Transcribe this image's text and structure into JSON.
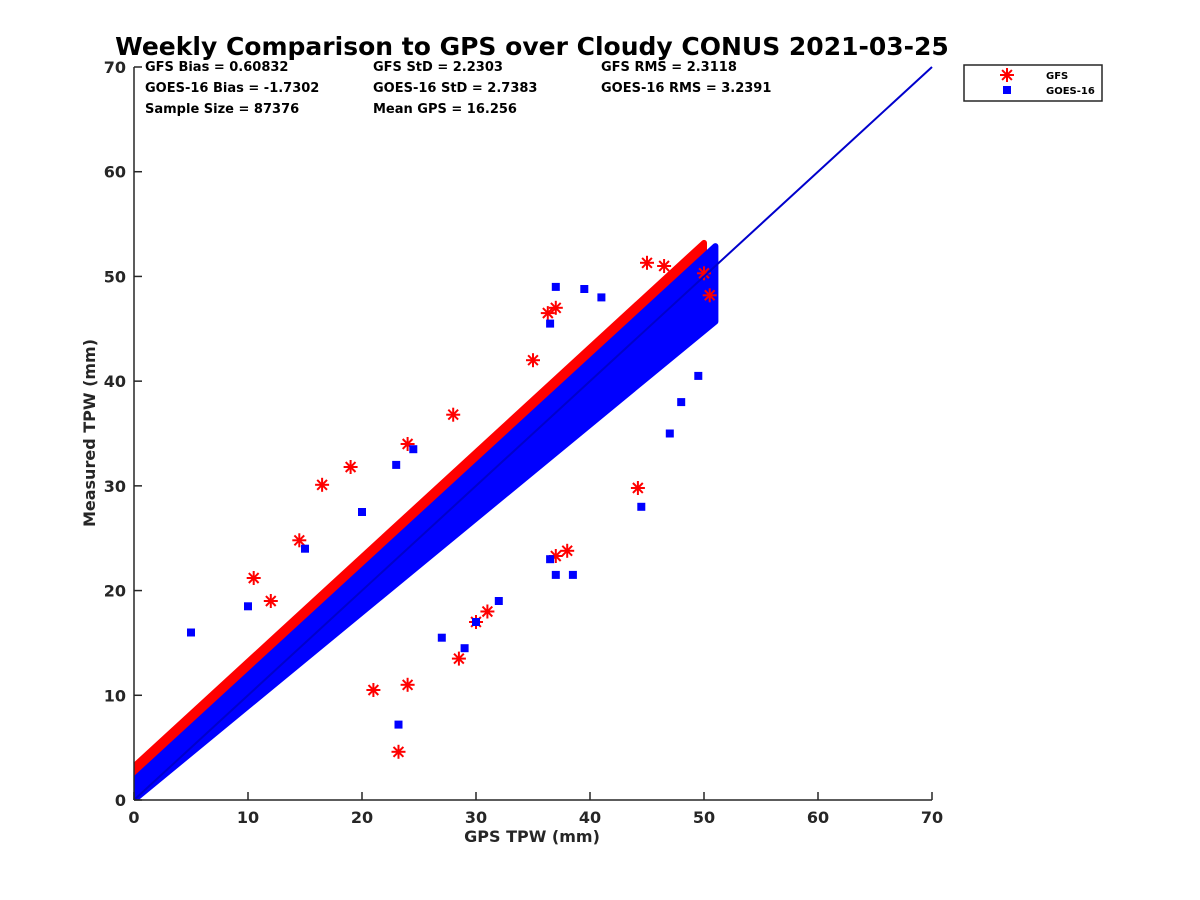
{
  "chart_data": {
    "type": "scatter",
    "title": "Weekly Comparison to GPS over Cloudy CONUS 2021-03-25",
    "xlabel": "GPS TPW (mm)",
    "ylabel": "Measured TPW (mm)",
    "xlim": [
      0,
      70
    ],
    "ylim": [
      0,
      70
    ],
    "xticks": [
      "0",
      "10",
      "20",
      "30",
      "40",
      "50",
      "60",
      "70"
    ],
    "yticks": [
      "0",
      "10",
      "20",
      "30",
      "40",
      "50",
      "60",
      "70"
    ],
    "grid": false,
    "legend_position": "top-right, outside plot",
    "stats": [
      [
        "GFS Bias = 0.60832",
        "GFS StD = 2.2303",
        "GFS RMS = 2.3118"
      ],
      [
        "GOES-16 Bias = -1.7302",
        "GOES-16 StD = 2.7383",
        "GOES-16 RMS = 3.2391"
      ],
      [
        "Sample Size = 87376",
        "Mean GPS = 16.256",
        ""
      ]
    ],
    "reference_line": {
      "type": "one-to-one",
      "x": [
        0,
        70
      ],
      "y": [
        0,
        70
      ],
      "color": "#0000cc"
    },
    "series": [
      {
        "name": "GFS",
        "marker": "asterisk",
        "color": "#ff0000",
        "band": {
          "x_start": 0,
          "x_end": 50,
          "y_center_offset": 0.6,
          "half_width": 2.6
        },
        "points": [
          [
            10.5,
            21.2
          ],
          [
            16.5,
            30.1
          ],
          [
            19.0,
            31.8
          ],
          [
            24.0,
            34.0
          ],
          [
            28.0,
            36.8
          ],
          [
            35.0,
            42.0
          ],
          [
            37.0,
            47.0
          ],
          [
            36.3,
            46.5
          ],
          [
            45.0,
            51.3
          ],
          [
            46.5,
            51.0
          ],
          [
            50.0,
            50.3
          ],
          [
            50.5,
            48.2
          ],
          [
            44.2,
            29.8
          ],
          [
            23.2,
            4.6
          ],
          [
            24.0,
            11.0
          ],
          [
            28.5,
            13.5
          ],
          [
            30.0,
            17.0
          ],
          [
            31.0,
            18.0
          ],
          [
            38.0,
            23.8
          ],
          [
            21.0,
            10.5
          ],
          [
            37.0,
            23.3
          ],
          [
            12.0,
            19.0
          ],
          [
            14.5,
            24.8
          ]
        ]
      },
      {
        "name": "GOES-16",
        "marker": "square",
        "color": "#0000ff",
        "band": {
          "x_start": 0,
          "x_end": 51,
          "y_center_offset": -1.7,
          "half_width": 3.6
        },
        "points": [
          [
            5.0,
            16.0
          ],
          [
            10.0,
            18.5
          ],
          [
            15.0,
            24.0
          ],
          [
            20.0,
            27.5
          ],
          [
            23.0,
            32.0
          ],
          [
            24.5,
            33.5
          ],
          [
            37.0,
            49.0
          ],
          [
            39.5,
            48.8
          ],
          [
            41.0,
            48.0
          ],
          [
            36.5,
            45.5
          ],
          [
            44.5,
            28.0
          ],
          [
            47.0,
            35.0
          ],
          [
            37.0,
            21.5
          ],
          [
            38.5,
            21.5
          ],
          [
            36.5,
            23.0
          ],
          [
            23.2,
            7.2
          ],
          [
            30.0,
            17.0
          ],
          [
            32.0,
            19.0
          ],
          [
            49.5,
            40.5
          ],
          [
            48.0,
            38.0
          ],
          [
            45.0,
            41.0
          ],
          [
            29.0,
            14.5
          ],
          [
            27.0,
            15.5
          ]
        ]
      }
    ]
  }
}
